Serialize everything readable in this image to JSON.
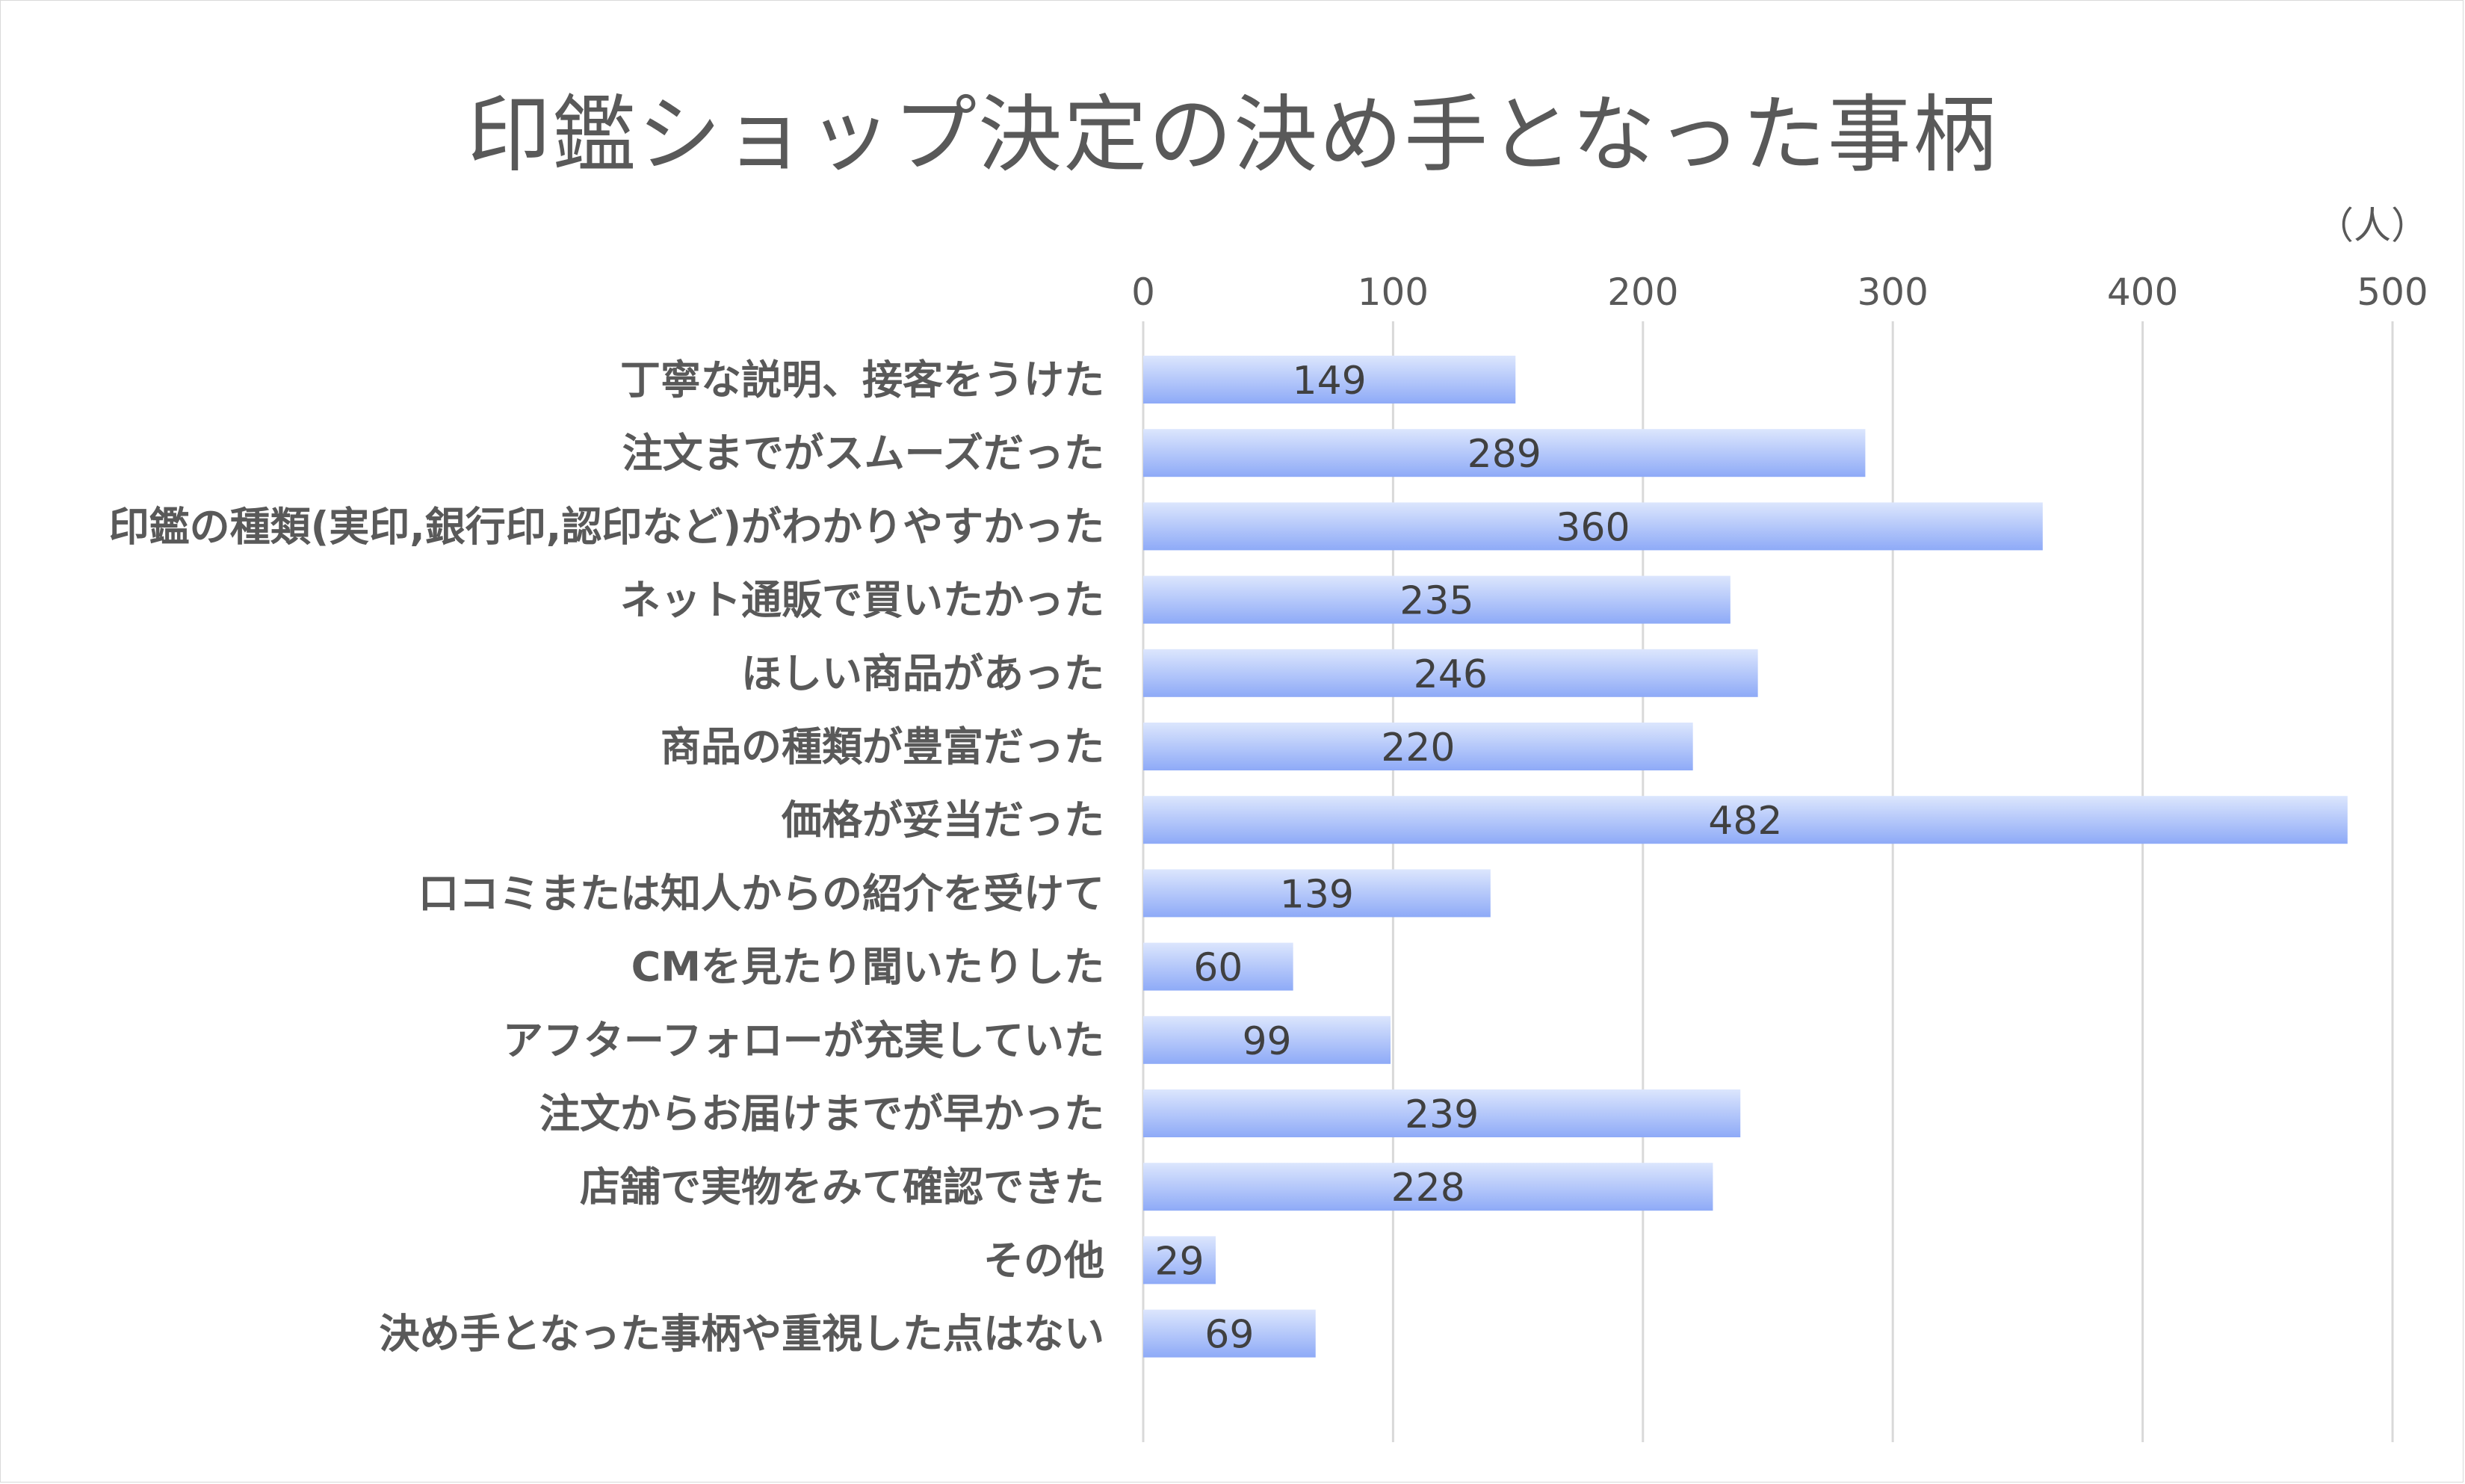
{
  "chart_data": {
    "type": "bar",
    "orientation": "horizontal",
    "title": "印鑑ショップ決定の決め手となった事柄",
    "unit": "（人）",
    "xlim": [
      0,
      500
    ],
    "ticks": [
      0,
      100,
      200,
      300,
      400,
      500
    ],
    "grid": true,
    "legend": "none",
    "bar_color_light": "#dce6fd",
    "bar_color_dark": "#8eaaf7",
    "categories": [
      "丁寧な説明、接客をうけた",
      "注文までがスムーズだった",
      "印鑑の種類(実印,銀行印,認印など)がわかりやすかった",
      "ネット通販で買いたかった",
      "ほしい商品があった",
      "商品の種類が豊富だった",
      "価格が妥当だった",
      "口コミまたは知人からの紹介を受けて",
      "CMを見たり聞いたりした",
      "アフターフォローが充実していた",
      "注文からお届けまでが早かった",
      "店舗で実物をみて確認できた",
      "その他",
      "決め手となった事柄や重視した点はない"
    ],
    "values": [
      149,
      289,
      360,
      235,
      246,
      220,
      482,
      139,
      60,
      99,
      239,
      228,
      29,
      69
    ]
  }
}
